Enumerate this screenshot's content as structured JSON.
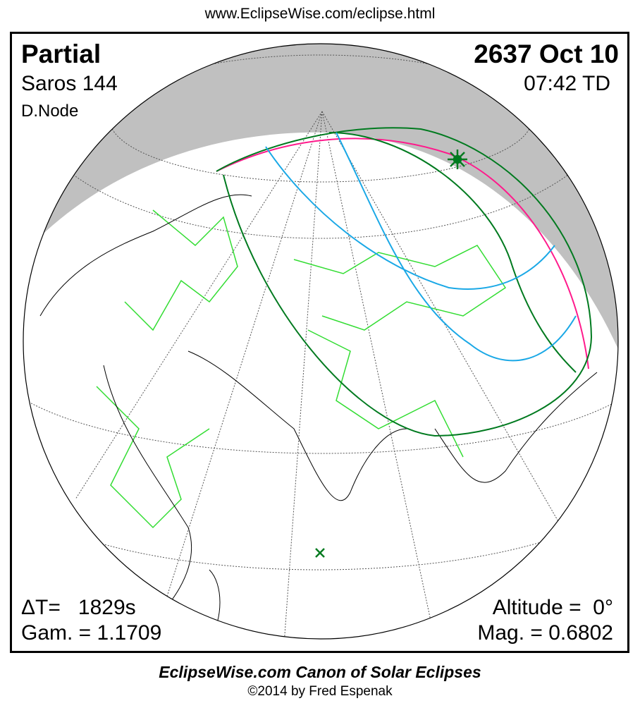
{
  "header": {
    "url": "www.EclipseWise.com/eclipse.html"
  },
  "eclipse": {
    "type": "Partial",
    "saros": "Saros 144",
    "node": "D.Node",
    "date": "2637 Oct 10",
    "time": "07:42 TD",
    "delta_t": "ΔT=   1829s",
    "gamma": "Gam. = 1.1709",
    "altitude": "Altitude =  0°",
    "magnitude": "Mag. = 0.6802"
  },
  "map": {
    "colors": {
      "night_shadow": "#c0c0c0",
      "borders": "#33dd33",
      "coast": "#000000",
      "penumbra_limit": "#007a1f",
      "sunrise_sunset": "#ff1a8c",
      "magnitude_contours": "#1aa8e6",
      "greatest_eclipse": "#007a1f"
    },
    "icons": {
      "greatest_eclipse": "star-marker",
      "subsolar_point": "x-marker"
    }
  },
  "footer": {
    "title": "EclipseWise.com Canon of Solar Eclipses",
    "copyright": "©2014 by Fred Espenak"
  }
}
